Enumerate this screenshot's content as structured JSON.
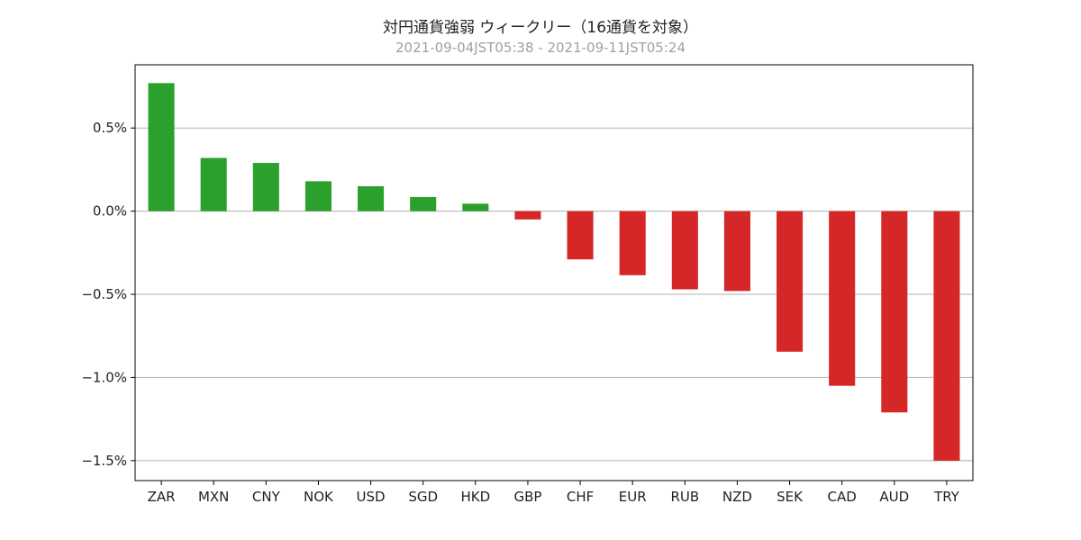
{
  "chart_data": {
    "type": "bar",
    "title": "対円通貨強弱 ウィークリー（16通貨を対象）",
    "subtitle": "2021-09-04JST05:38 - 2021-09-11JST05:24",
    "xlabel": "",
    "ylabel": "",
    "categories": [
      "ZAR",
      "MXN",
      "CNY",
      "NOK",
      "USD",
      "SGD",
      "HKD",
      "GBP",
      "CHF",
      "EUR",
      "RUB",
      "NZD",
      "SEK",
      "CAD",
      "AUD",
      "TRY"
    ],
    "values": [
      0.77,
      0.32,
      0.29,
      0.18,
      0.15,
      0.085,
      0.045,
      -0.05,
      -0.29,
      -0.385,
      -0.47,
      -0.48,
      -0.845,
      -1.05,
      -1.21,
      -1.5
    ],
    "unit": "%",
    "ylim": [
      -1.62,
      0.88
    ],
    "yticks": [
      0.5,
      0.0,
      -0.5,
      -1.0,
      -1.5
    ],
    "ytick_labels": [
      "0.5%",
      "0.0%",
      "−0.5%",
      "−1.0%",
      "−1.5%"
    ],
    "grid": "horizontal",
    "legend": "none",
    "colors": {
      "positive": "#2ca02c",
      "negative": "#d62728",
      "grid": "#b0b0b0",
      "axis": "#000000"
    }
  }
}
